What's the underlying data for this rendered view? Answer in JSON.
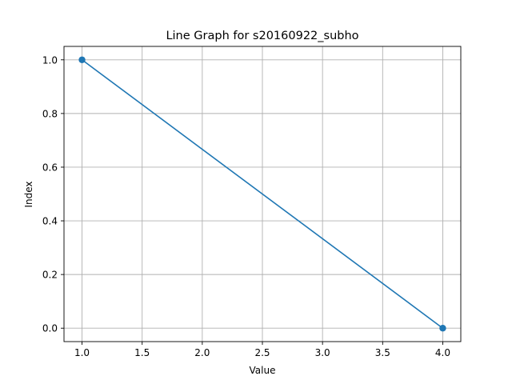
{
  "chart_data": {
    "type": "line",
    "title": "Line Graph for s20160922_subho",
    "xlabel": "Value",
    "ylabel": "Index",
    "xlim": [
      0.85,
      4.15
    ],
    "ylim": [
      -0.05,
      1.05
    ],
    "xticks": [
      1.0,
      1.5,
      2.0,
      2.5,
      3.0,
      3.5,
      4.0
    ],
    "xtick_labels": [
      "1.0",
      "1.5",
      "2.0",
      "2.5",
      "3.0",
      "3.5",
      "4.0"
    ],
    "yticks": [
      0.0,
      0.2,
      0.4,
      0.6,
      0.8,
      1.0
    ],
    "ytick_labels": [
      "0.0",
      "0.2",
      "0.4",
      "0.6",
      "0.8",
      "1.0"
    ],
    "grid": true,
    "series": [
      {
        "x": [
          1.0,
          4.0
        ],
        "y": [
          1.0,
          0.0
        ],
        "color": "#1f77b4",
        "marker": "circle"
      }
    ]
  }
}
